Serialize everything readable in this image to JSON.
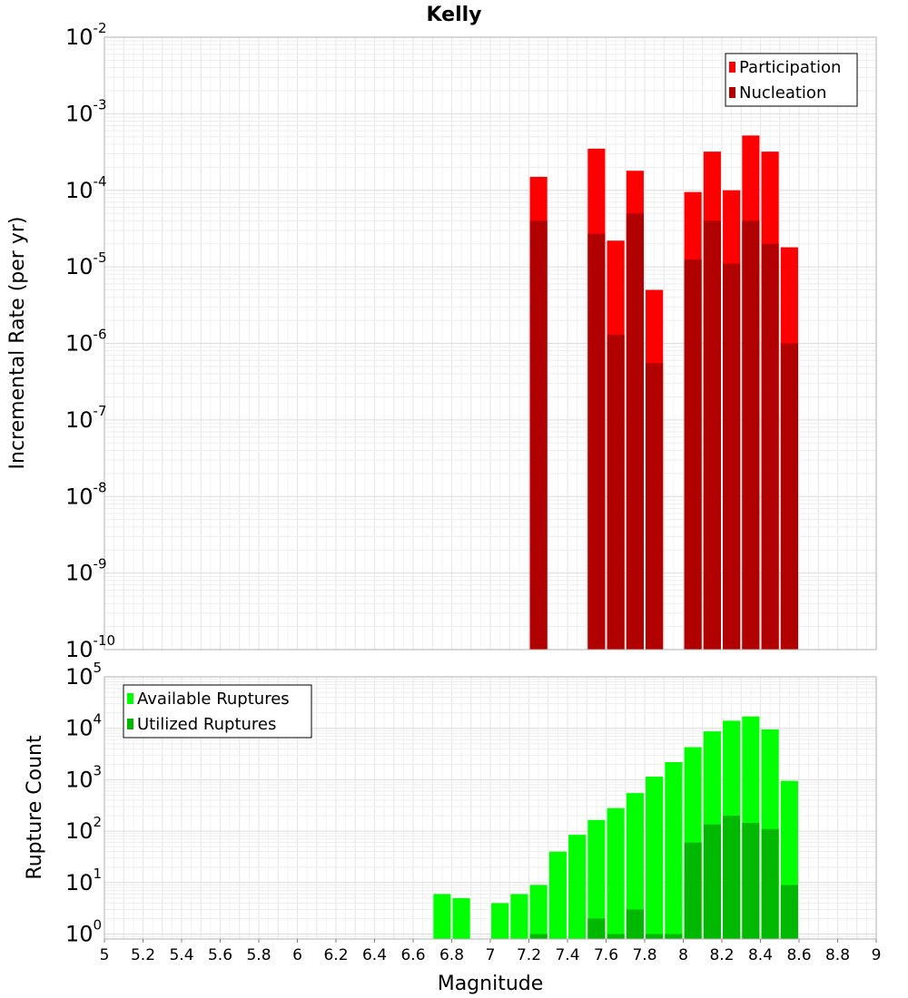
{
  "chart_data": [
    {
      "type": "bar",
      "title": "Kelly",
      "xlabel": "",
      "ylabel": "Incremental Rate (per yr)",
      "yscale": "log",
      "ylim": [
        1e-10,
        0.01
      ],
      "xlim": [
        5,
        9
      ],
      "grid": true,
      "legend": "top-right",
      "x": [
        7.25,
        7.55,
        7.65,
        7.75,
        7.85,
        8.05,
        8.15,
        8.25,
        8.35,
        8.45,
        8.55
      ],
      "series": [
        {
          "name": "Participation",
          "color": "#ff0000",
          "values": [
            0.00015,
            0.00035,
            2.2e-05,
            0.00018,
            5e-06,
            9.5e-05,
            0.00032,
            0.0001,
            0.00052,
            0.00032,
            1.8e-05
          ]
        },
        {
          "name": "Nucleation",
          "color": "#b00000",
          "values": [
            4e-05,
            2.7e-05,
            1.3e-06,
            5e-05,
            5.5e-07,
            1.25e-05,
            4e-05,
            1.1e-05,
            4e-05,
            2e-05,
            1e-06
          ]
        }
      ]
    },
    {
      "type": "bar",
      "title": "",
      "xlabel": "Magnitude",
      "ylabel": "Rupture Count",
      "yscale": "log",
      "ylim": [
        0.8,
        100000.0
      ],
      "xlim": [
        5,
        9
      ],
      "grid": true,
      "legend": "top-left",
      "x": [
        6.75,
        6.85,
        7.05,
        7.15,
        7.25,
        7.35,
        7.45,
        7.55,
        7.65,
        7.75,
        7.85,
        7.95,
        8.05,
        8.15,
        8.25,
        8.35,
        8.45,
        8.55
      ],
      "series": [
        {
          "name": "Available Ruptures",
          "color": "#00ff00",
          "values": [
            6,
            5,
            4,
            6,
            9,
            40,
            85,
            165,
            280,
            550,
            1150,
            2200,
            4300,
            8700,
            14000,
            17000,
            9500,
            950
          ]
        },
        {
          "name": "Utilized Ruptures",
          "color": "#00b800",
          "values": [
            null,
            null,
            null,
            null,
            1,
            null,
            null,
            2,
            1,
            3,
            1,
            1,
            60,
            135,
            200,
            145,
            110,
            9
          ]
        }
      ]
    }
  ],
  "x_ticks": [
    "5",
    "5.2",
    "5.4",
    "5.6",
    "5.8",
    "6",
    "6.2",
    "6.4",
    "6.6",
    "6.8",
    "7",
    "7.2",
    "7.4",
    "7.6",
    "7.8",
    "8",
    "8.2",
    "8.4",
    "8.6",
    "8.8",
    "9"
  ],
  "top_y_ticks": [
    {
      "base": "10",
      "exp": "-10"
    },
    {
      "base": "10",
      "exp": "-9"
    },
    {
      "base": "10",
      "exp": "-8"
    },
    {
      "base": "10",
      "exp": "-7"
    },
    {
      "base": "10",
      "exp": "-6"
    },
    {
      "base": "10",
      "exp": "-5"
    },
    {
      "base": "10",
      "exp": "-4"
    },
    {
      "base": "10",
      "exp": "-3"
    },
    {
      "base": "10",
      "exp": "-2"
    }
  ],
  "bottom_y_ticks": [
    {
      "base": "10",
      "exp": "0"
    },
    {
      "base": "10",
      "exp": "1"
    },
    {
      "base": "10",
      "exp": "2"
    },
    {
      "base": "10",
      "exp": "3"
    },
    {
      "base": "10",
      "exp": "4"
    },
    {
      "base": "10",
      "exp": "5"
    }
  ]
}
